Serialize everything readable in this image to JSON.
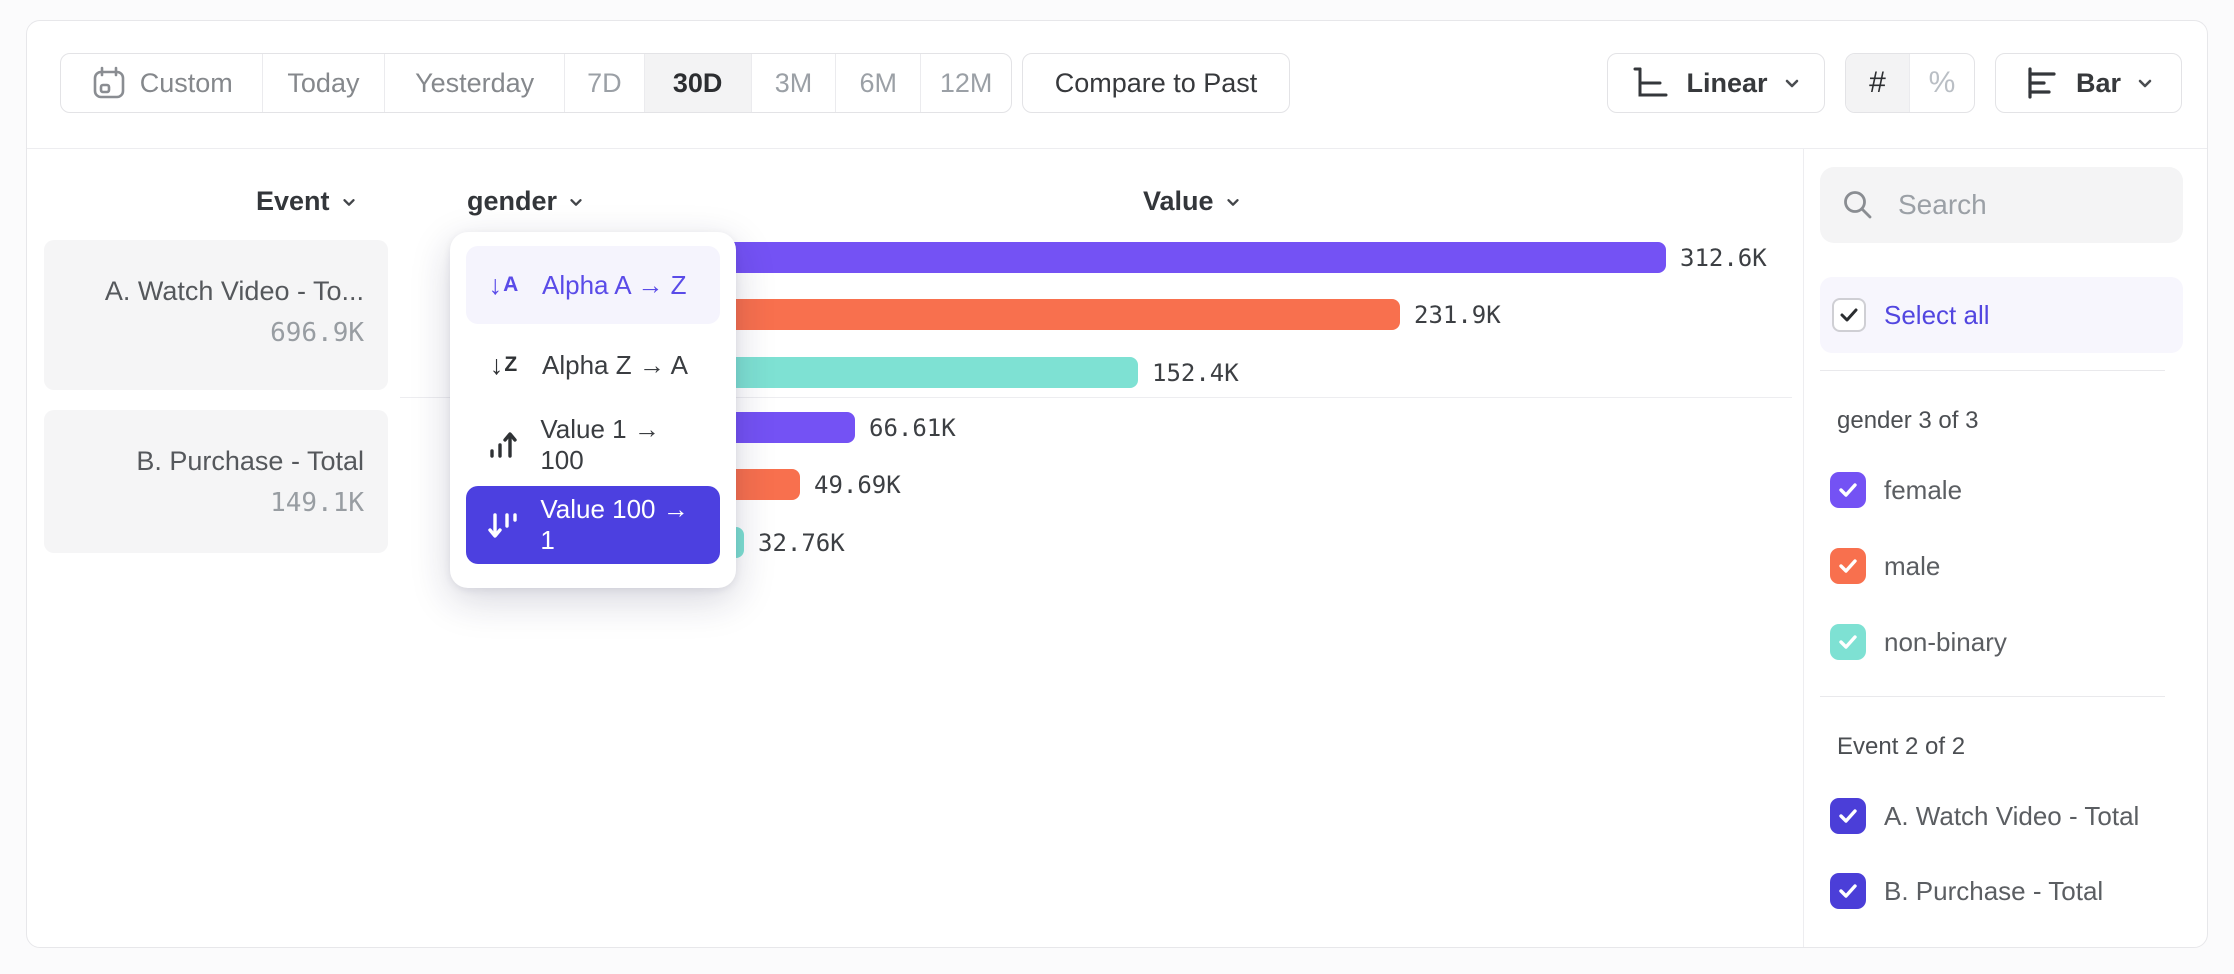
{
  "colors": {
    "purple": "#7452f4",
    "orange": "#f8704e",
    "teal": "#7ee1d3",
    "indigo": "#4b3ed8",
    "menu_selected_bg": "#4c40e0",
    "link_purple": "#5246e0"
  },
  "toolbar": {
    "date_ranges": [
      {
        "label": "Custom",
        "selected": false
      },
      {
        "label": "Today",
        "selected": false
      },
      {
        "label": "Yesterday",
        "selected": false
      },
      {
        "label": "7D",
        "selected": false
      },
      {
        "label": "30D",
        "selected": true
      },
      {
        "label": "3M",
        "selected": false
      },
      {
        "label": "6M",
        "selected": false
      },
      {
        "label": "12M",
        "selected": false
      }
    ],
    "compare_button": "Compare to Past",
    "scale_selector": "Linear",
    "format_toggle": {
      "count": "#",
      "percent": "%",
      "selected": "#"
    },
    "chart_type_selector": "Bar"
  },
  "table": {
    "columns": {
      "event": "Event",
      "breakdown": "gender",
      "value": "Value"
    },
    "event_rows": [
      {
        "name": "A. Watch Video - To...",
        "total": "696.9K"
      },
      {
        "name": "B. Purchase - Total",
        "total": "149.1K"
      }
    ]
  },
  "sort_menu": {
    "items": [
      {
        "label": "Alpha A → Z",
        "state": "highlighted"
      },
      {
        "label": "Alpha Z → A",
        "state": "default"
      },
      {
        "label": "Value 1 → 100",
        "state": "default"
      },
      {
        "label": "Value 100 → 1",
        "state": "selected"
      }
    ]
  },
  "chart_data": {
    "type": "bar",
    "orientation": "horizontal",
    "categories": [
      "female",
      "male",
      "non-binary"
    ],
    "series": [
      {
        "name": "A. Watch Video - Total",
        "values": [
          312600,
          231900,
          152400
        ]
      },
      {
        "name": "B. Purchase - Total",
        "values": [
          66610,
          49690,
          32760
        ]
      }
    ],
    "display_labels": [
      [
        "312.6K",
        "231.9K",
        "152.4K"
      ],
      [
        "66.61K",
        "49.69K",
        "32.76K"
      ]
    ],
    "category_colors": [
      "#7452f4",
      "#f8704e",
      "#7ee1d3"
    ],
    "value_axis_label": "Value",
    "sort": "Value 100 → 1",
    "legend_position": "right-sidebar",
    "grid": false
  },
  "sidebar": {
    "search_placeholder": "Search",
    "select_all_label": "Select all",
    "select_all_checked": true,
    "groups": [
      {
        "title": "gender 3 of 3",
        "items": [
          {
            "label": "female",
            "checked": true,
            "colorkey": "purple"
          },
          {
            "label": "male",
            "checked": true,
            "colorkey": "orange"
          },
          {
            "label": "non-binary",
            "checked": true,
            "colorkey": "teal"
          }
        ]
      },
      {
        "title": "Event 2 of 2",
        "items": [
          {
            "label": "A. Watch Video - Total",
            "checked": true,
            "colorkey": "indigo"
          },
          {
            "label": "B. Purchase - Total",
            "checked": true,
            "colorkey": "indigo"
          }
        ]
      }
    ]
  }
}
